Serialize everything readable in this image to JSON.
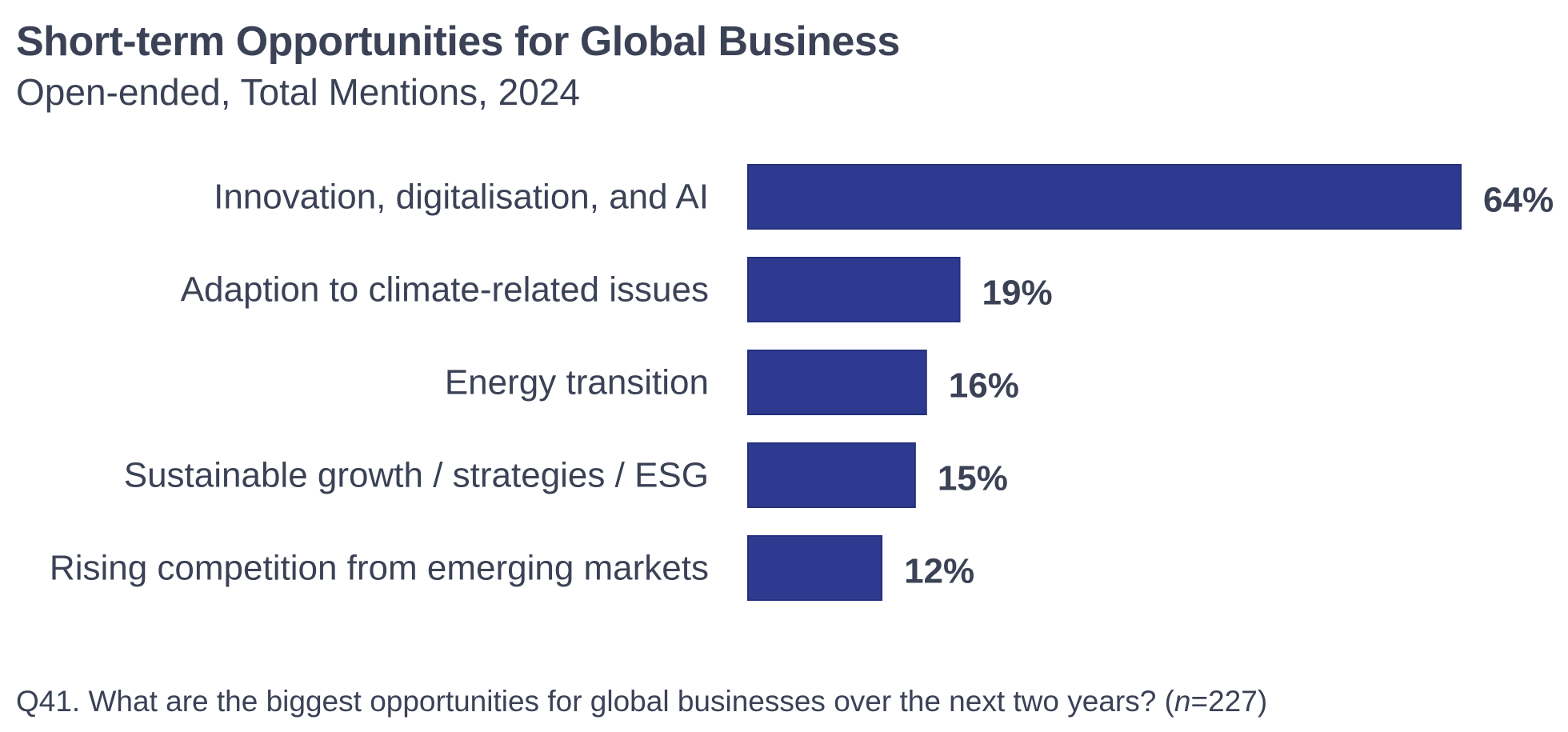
{
  "chart_data": {
    "type": "bar",
    "orientation": "horizontal",
    "title": "Short-term Opportunities for Global Business",
    "subtitle": "Open-ended, Total Mentions, 2024",
    "categories": [
      "Innovation, digitalisation, and AI",
      "Adaption to climate-related issues",
      "Energy transition",
      "Sustainable growth / strategies / ESG",
      "Rising competition from emerging markets"
    ],
    "values": [
      64,
      19,
      16,
      15,
      12
    ],
    "data_labels": [
      "64%",
      "19%",
      "16%",
      "15%",
      "12%"
    ],
    "xlim": [
      0,
      64
    ],
    "grid": false,
    "legend": "none",
    "bar_color": "#2e3a8f"
  },
  "footnote": {
    "prefix": "Q41. What are the biggest opportunities for global businesses over the next two years? (",
    "n_symbol": "n",
    "suffix": "=227)"
  },
  "colors": {
    "text": "#3b4256",
    "bar": "#2e3a8f"
  }
}
